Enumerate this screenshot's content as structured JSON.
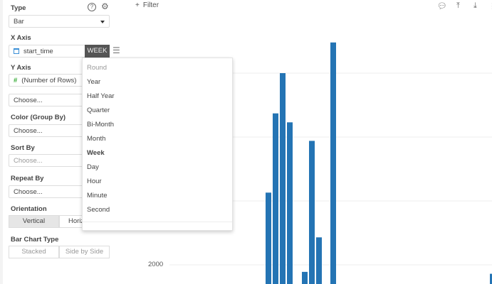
{
  "sidebar": {
    "type_label": "Type",
    "type_value": "Bar",
    "x_axis_label": "X Axis",
    "x_axis_field": "start_time",
    "x_axis_unit": "WEEK",
    "y_axis_label": "Y Axis",
    "y_axis_field": "(Number of Rows)",
    "y_choose": "Choose...",
    "color_label": "Color (Group By)",
    "color_value": "Choose...",
    "sort_label": "Sort By",
    "sort_value": "Choose...",
    "repeat_label": "Repeat By",
    "repeat_value": "Choose...",
    "orientation_label": "Orientation",
    "orientation_options": [
      "Vertical",
      "Horiz"
    ],
    "bar_type_label": "Bar Chart Type",
    "bar_type_options": [
      "Stacked",
      "Side by Side"
    ]
  },
  "menu": {
    "header": "Round",
    "items": [
      "Year",
      "Half Year",
      "Quarter",
      "Bi-Month",
      "Month",
      "Week",
      "Day",
      "Hour",
      "Minute",
      "Second"
    ],
    "selected": "Week"
  },
  "toolbar": {
    "filter_label": "Filter"
  },
  "chart_data": {
    "type": "bar",
    "color": "#2474b4",
    "ytick_labels": [
      "2000"
    ],
    "values": [
      3130,
      4370,
      5000,
      4230,
      1890,
      3940,
      2430,
      5480,
      1860
    ],
    "grid": true
  }
}
